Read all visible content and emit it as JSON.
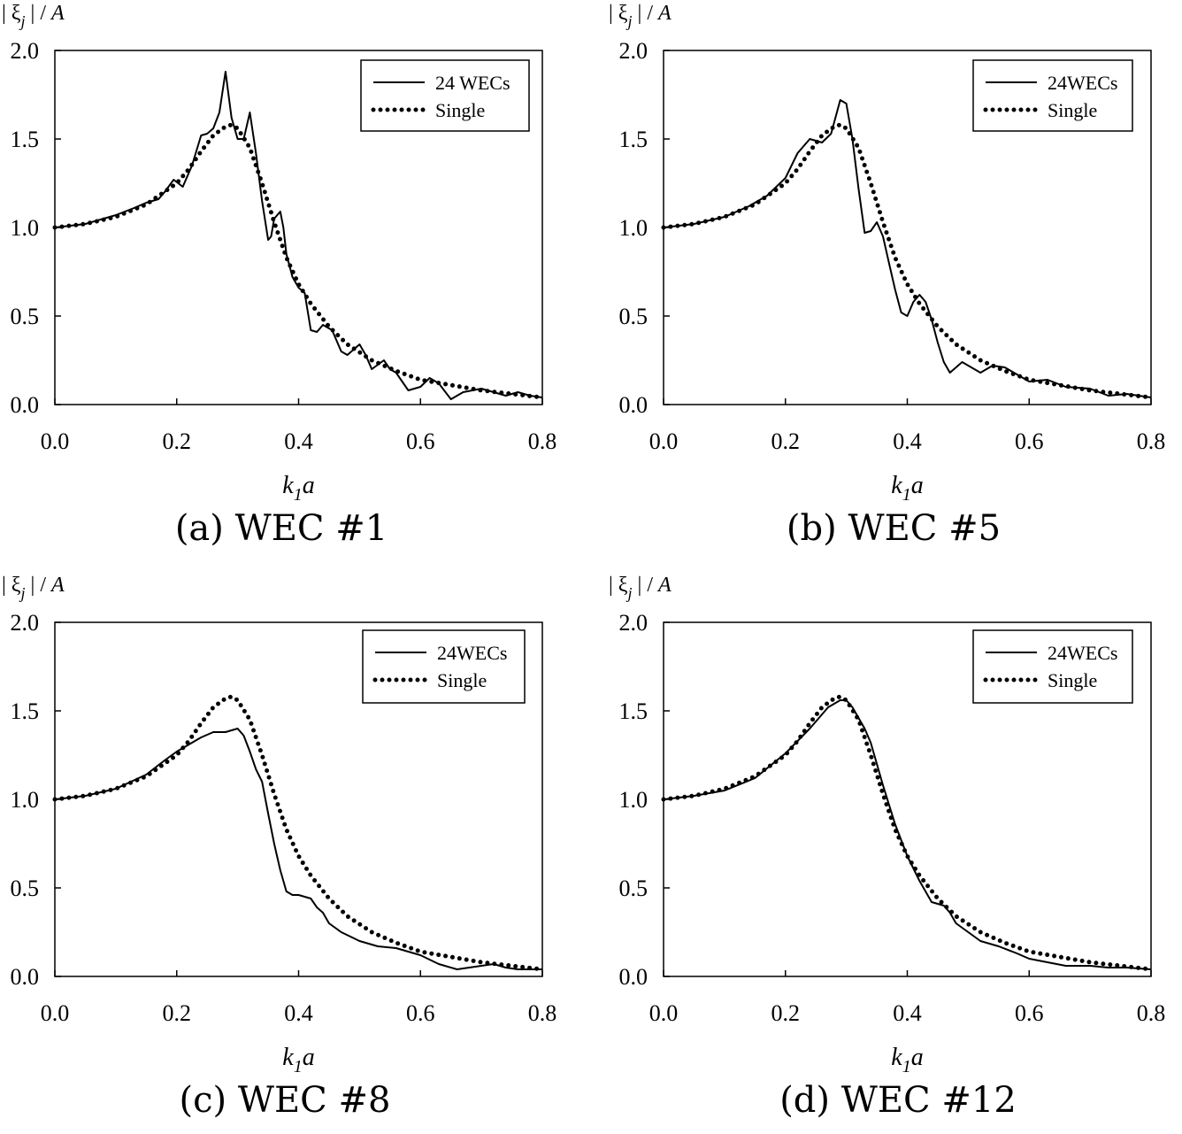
{
  "figure": {
    "captions": [
      "(a) WEC #1",
      "(b) WEC #5",
      "(c) WEC #8",
      "(d) WEC #12"
    ]
  },
  "chart_data": [
    {
      "type": "line",
      "caption": "(a) WEC #1",
      "ylabel": "| ξj | / A",
      "xlabel": "k1a",
      "xlim": [
        0,
        0.8
      ],
      "ylim": [
        0,
        2
      ],
      "xticks": [
        "0.0",
        "0.2",
        "0.4",
        "0.6",
        "0.8"
      ],
      "yticks": [
        "0.0",
        "0.5",
        "1.0",
        "1.5",
        "2.0"
      ],
      "legend": [
        "24 WECs",
        "Single"
      ],
      "series": [
        {
          "name": "24 WECs",
          "style": "solid",
          "x": [
            0,
            0.05,
            0.1,
            0.13,
            0.15,
            0.17,
            0.18,
            0.195,
            0.21,
            0.225,
            0.24,
            0.25,
            0.26,
            0.27,
            0.28,
            0.29,
            0.3,
            0.31,
            0.32,
            0.33,
            0.34,
            0.35,
            0.355,
            0.36,
            0.37,
            0.375,
            0.38,
            0.39,
            0.4,
            0.41,
            0.42,
            0.43,
            0.44,
            0.455,
            0.47,
            0.48,
            0.5,
            0.51,
            0.52,
            0.54,
            0.55,
            0.56,
            0.58,
            0.6,
            0.615,
            0.63,
            0.65,
            0.67,
            0.7,
            0.72,
            0.74,
            0.76,
            0.78,
            0.8
          ],
          "y": [
            1.0,
            1.02,
            1.07,
            1.11,
            1.14,
            1.16,
            1.2,
            1.27,
            1.23,
            1.35,
            1.52,
            1.53,
            1.56,
            1.65,
            1.88,
            1.62,
            1.5,
            1.5,
            1.65,
            1.42,
            1.15,
            0.93,
            0.95,
            1.05,
            1.09,
            1.0,
            0.85,
            0.72,
            0.66,
            0.63,
            0.42,
            0.41,
            0.45,
            0.42,
            0.3,
            0.28,
            0.34,
            0.28,
            0.2,
            0.25,
            0.2,
            0.18,
            0.08,
            0.1,
            0.15,
            0.12,
            0.03,
            0.07,
            0.09,
            0.07,
            0.05,
            0.07,
            0.05,
            0.04
          ]
        },
        {
          "name": "Single",
          "style": "dotted",
          "x": [
            0,
            0.05,
            0.1,
            0.15,
            0.2,
            0.22,
            0.24,
            0.26,
            0.28,
            0.29,
            0.3,
            0.32,
            0.34,
            0.36,
            0.38,
            0.4,
            0.42,
            0.45,
            0.48,
            0.52,
            0.56,
            0.6,
            0.65,
            0.7,
            0.75,
            0.8
          ],
          "y": [
            1.0,
            1.02,
            1.06,
            1.13,
            1.25,
            1.33,
            1.43,
            1.52,
            1.57,
            1.58,
            1.56,
            1.45,
            1.25,
            1.03,
            0.83,
            0.68,
            0.57,
            0.44,
            0.34,
            0.25,
            0.19,
            0.14,
            0.11,
            0.08,
            0.06,
            0.04
          ]
        }
      ]
    },
    {
      "type": "line",
      "caption": "(b) WEC #5",
      "ylabel": "| ξj | / A",
      "xlabel": "k1a",
      "xlim": [
        0,
        0.8
      ],
      "ylim": [
        0,
        2
      ],
      "xticks": [
        "0.0",
        "0.2",
        "0.4",
        "0.6",
        "0.8"
      ],
      "yticks": [
        "0.0",
        "0.5",
        "1.0",
        "1.5",
        "2.0"
      ],
      "legend": [
        "24WECs",
        "Single"
      ],
      "series": [
        {
          "name": "24WECs",
          "style": "solid",
          "x": [
            0,
            0.05,
            0.1,
            0.14,
            0.17,
            0.2,
            0.22,
            0.24,
            0.26,
            0.275,
            0.29,
            0.3,
            0.31,
            0.32,
            0.33,
            0.34,
            0.35,
            0.36,
            0.37,
            0.38,
            0.39,
            0.4,
            0.41,
            0.42,
            0.43,
            0.44,
            0.45,
            0.46,
            0.47,
            0.48,
            0.49,
            0.5,
            0.52,
            0.54,
            0.56,
            0.58,
            0.6,
            0.63,
            0.66,
            0.7,
            0.73,
            0.76,
            0.8
          ],
          "y": [
            1.0,
            1.02,
            1.06,
            1.12,
            1.18,
            1.28,
            1.42,
            1.5,
            1.48,
            1.53,
            1.72,
            1.7,
            1.5,
            1.22,
            0.97,
            0.98,
            1.03,
            0.95,
            0.8,
            0.65,
            0.52,
            0.5,
            0.58,
            0.62,
            0.58,
            0.48,
            0.35,
            0.24,
            0.18,
            0.21,
            0.24,
            0.22,
            0.18,
            0.22,
            0.21,
            0.17,
            0.13,
            0.14,
            0.1,
            0.09,
            0.05,
            0.06,
            0.04
          ]
        },
        {
          "name": "Single",
          "style": "dotted",
          "x": [
            0,
            0.05,
            0.1,
            0.15,
            0.2,
            0.22,
            0.24,
            0.26,
            0.28,
            0.29,
            0.3,
            0.32,
            0.34,
            0.36,
            0.38,
            0.4,
            0.42,
            0.45,
            0.48,
            0.52,
            0.56,
            0.6,
            0.65,
            0.7,
            0.75,
            0.8
          ],
          "y": [
            1.0,
            1.02,
            1.06,
            1.13,
            1.25,
            1.33,
            1.43,
            1.52,
            1.57,
            1.58,
            1.56,
            1.45,
            1.25,
            1.03,
            0.83,
            0.68,
            0.57,
            0.44,
            0.34,
            0.25,
            0.19,
            0.14,
            0.11,
            0.08,
            0.06,
            0.04
          ]
        }
      ]
    },
    {
      "type": "line",
      "caption": "(c) WEC #8",
      "ylabel": "| ξj | / A",
      "xlabel": "k1a",
      "xlim": [
        0,
        0.8
      ],
      "ylim": [
        0,
        2
      ],
      "xticks": [
        "0.0",
        "0.2",
        "0.4",
        "0.6",
        "0.8"
      ],
      "yticks": [
        "0.0",
        "0.5",
        "1.0",
        "1.5",
        "2.0"
      ],
      "legend": [
        "24WECs",
        "Single"
      ],
      "series": [
        {
          "name": "24WECs",
          "style": "solid",
          "x": [
            0,
            0.05,
            0.1,
            0.15,
            0.18,
            0.2,
            0.22,
            0.24,
            0.26,
            0.28,
            0.29,
            0.3,
            0.31,
            0.32,
            0.33,
            0.34,
            0.35,
            0.36,
            0.37,
            0.38,
            0.39,
            0.4,
            0.42,
            0.43,
            0.44,
            0.45,
            0.47,
            0.5,
            0.53,
            0.56,
            0.6,
            0.63,
            0.66,
            0.68,
            0.7,
            0.72,
            0.74,
            0.76,
            0.8
          ],
          "y": [
            1.0,
            1.02,
            1.06,
            1.14,
            1.22,
            1.27,
            1.31,
            1.35,
            1.38,
            1.38,
            1.39,
            1.4,
            1.36,
            1.27,
            1.17,
            1.1,
            0.92,
            0.75,
            0.6,
            0.48,
            0.46,
            0.46,
            0.44,
            0.39,
            0.36,
            0.3,
            0.25,
            0.2,
            0.17,
            0.16,
            0.12,
            0.07,
            0.04,
            0.05,
            0.06,
            0.07,
            0.05,
            0.04,
            0.04
          ]
        },
        {
          "name": "Single",
          "style": "dotted",
          "x": [
            0,
            0.05,
            0.1,
            0.15,
            0.2,
            0.22,
            0.24,
            0.26,
            0.28,
            0.29,
            0.3,
            0.32,
            0.34,
            0.36,
            0.38,
            0.4,
            0.42,
            0.45,
            0.48,
            0.52,
            0.56,
            0.6,
            0.65,
            0.7,
            0.75,
            0.8
          ],
          "y": [
            1.0,
            1.02,
            1.06,
            1.13,
            1.25,
            1.33,
            1.43,
            1.52,
            1.57,
            1.58,
            1.56,
            1.45,
            1.25,
            1.03,
            0.83,
            0.68,
            0.57,
            0.44,
            0.34,
            0.25,
            0.19,
            0.14,
            0.11,
            0.08,
            0.06,
            0.04
          ]
        }
      ]
    },
    {
      "type": "line",
      "caption": "(d) WEC #12",
      "ylabel": "| ξj | / A",
      "xlabel": "k1a",
      "xlim": [
        0,
        0.8
      ],
      "ylim": [
        0,
        2
      ],
      "xticks": [
        "0.0",
        "0.2",
        "0.4",
        "0.6",
        "0.8"
      ],
      "yticks": [
        "0.0",
        "0.5",
        "1.0",
        "1.5",
        "2.0"
      ],
      "legend": [
        "24WECs",
        "Single"
      ],
      "series": [
        {
          "name": "24WECs",
          "style": "solid",
          "x": [
            0,
            0.05,
            0.1,
            0.15,
            0.2,
            0.24,
            0.27,
            0.29,
            0.3,
            0.31,
            0.32,
            0.33,
            0.34,
            0.35,
            0.36,
            0.38,
            0.4,
            0.42,
            0.44,
            0.46,
            0.47,
            0.48,
            0.5,
            0.52,
            0.55,
            0.58,
            0.6,
            0.63,
            0.66,
            0.7,
            0.73,
            0.76,
            0.8
          ],
          "y": [
            1.0,
            1.02,
            1.05,
            1.12,
            1.26,
            1.4,
            1.52,
            1.56,
            1.56,
            1.52,
            1.46,
            1.4,
            1.32,
            1.2,
            1.08,
            0.86,
            0.68,
            0.54,
            0.42,
            0.4,
            0.36,
            0.3,
            0.25,
            0.2,
            0.17,
            0.13,
            0.1,
            0.08,
            0.06,
            0.06,
            0.05,
            0.05,
            0.04
          ]
        },
        {
          "name": "Single",
          "style": "dotted",
          "x": [
            0,
            0.05,
            0.1,
            0.15,
            0.2,
            0.22,
            0.24,
            0.26,
            0.28,
            0.29,
            0.3,
            0.32,
            0.34,
            0.36,
            0.38,
            0.4,
            0.42,
            0.45,
            0.48,
            0.52,
            0.56,
            0.6,
            0.65,
            0.7,
            0.75,
            0.8
          ],
          "y": [
            1.0,
            1.02,
            1.06,
            1.13,
            1.25,
            1.33,
            1.43,
            1.52,
            1.57,
            1.58,
            1.56,
            1.45,
            1.25,
            1.03,
            0.83,
            0.68,
            0.57,
            0.44,
            0.34,
            0.25,
            0.19,
            0.14,
            0.11,
            0.08,
            0.06,
            0.04
          ]
        }
      ]
    }
  ]
}
